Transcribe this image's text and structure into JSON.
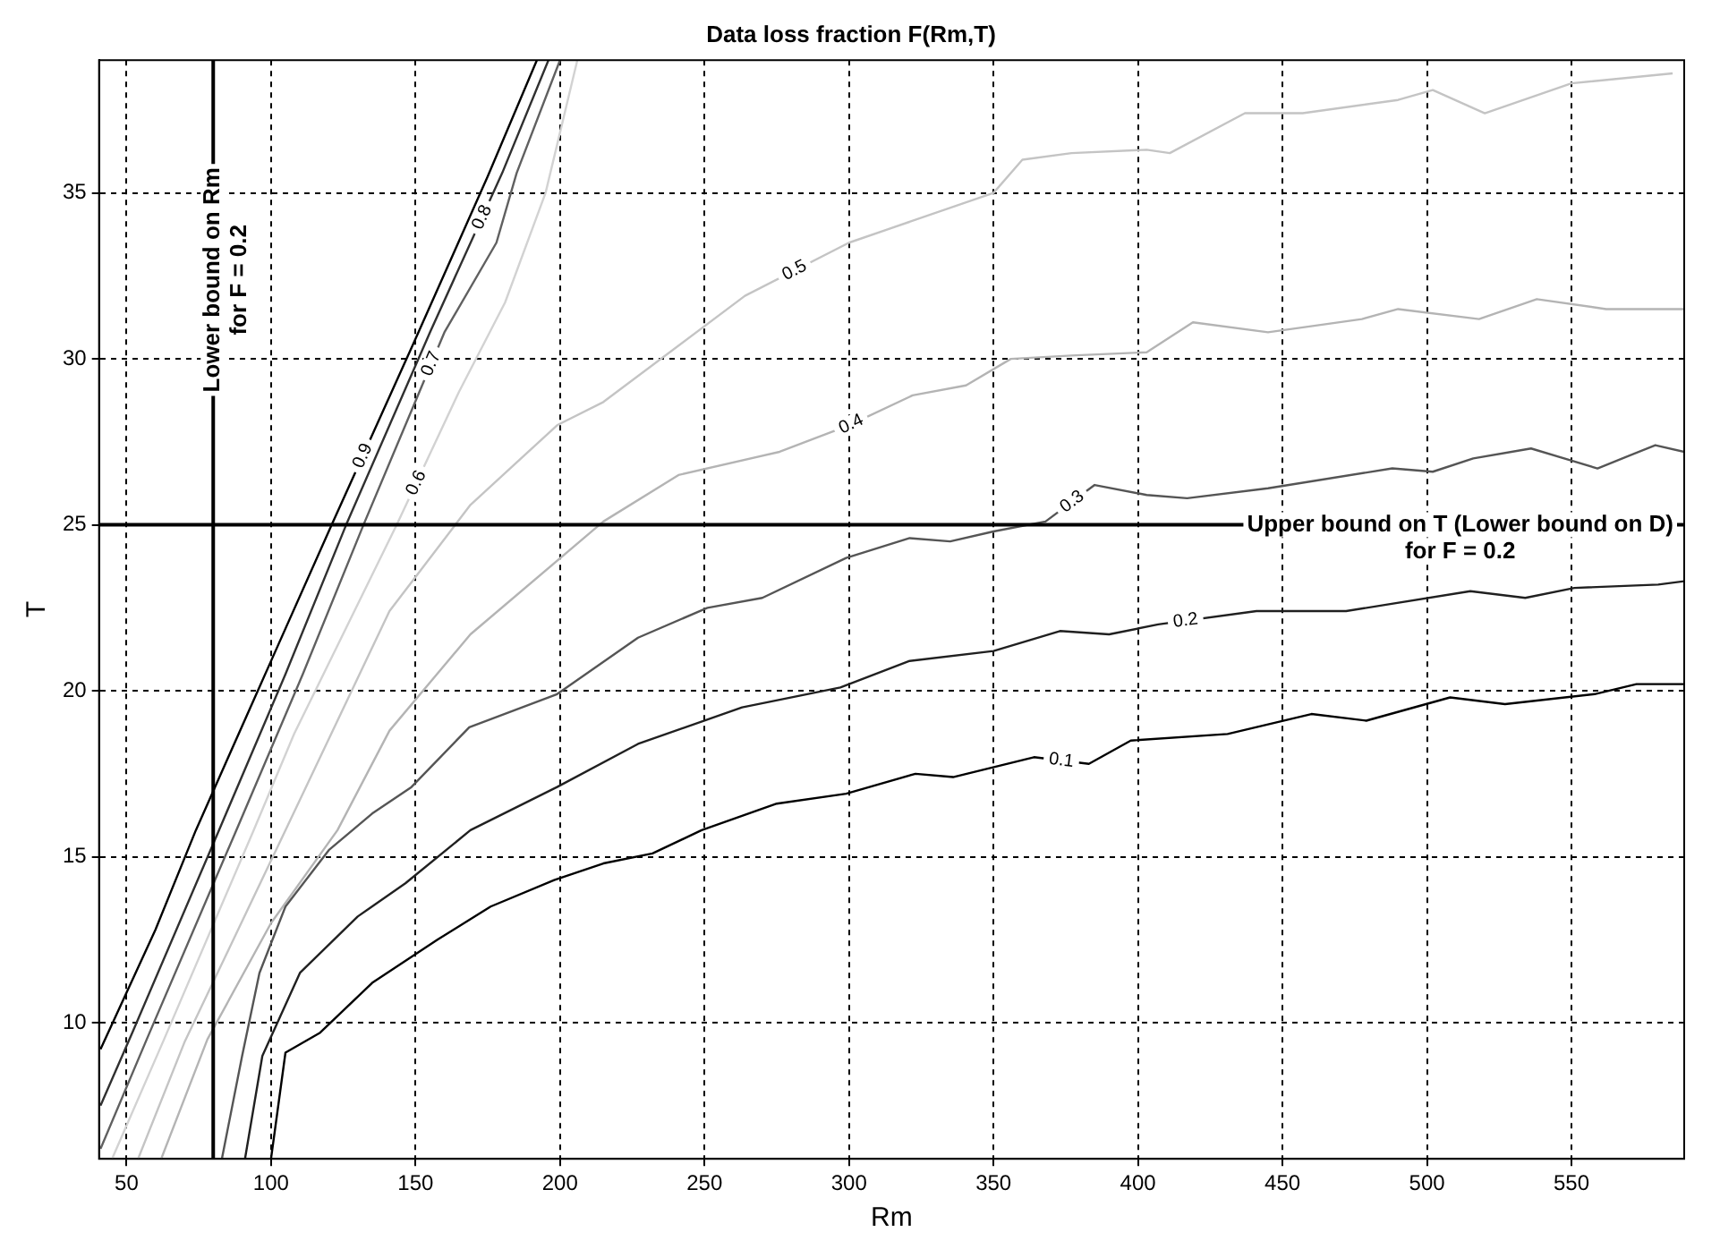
{
  "chart_data": {
    "type": "line",
    "title": "Data loss fraction F(Rm,T)",
    "xlabel": "Rm",
    "ylabel": "T",
    "xlim": [
      40.5,
      589
    ],
    "ylim": [
      5.9,
      39
    ],
    "xticks": [
      50,
      100,
      150,
      200,
      250,
      300,
      350,
      400,
      450,
      500,
      550
    ],
    "yticks": [
      10,
      15,
      20,
      25,
      30,
      35
    ],
    "grid": true,
    "legend": false,
    "marker": "none",
    "line_style": "solid",
    "ref_lines": [
      {
        "axis": "x",
        "value": 80
      },
      {
        "axis": "y",
        "value": 25
      }
    ],
    "annotations": [
      "Lower bound on Rm\nfor F = 0.2",
      "Upper bound on T (Lower bound on D)\nfor F = 0.2"
    ],
    "series": [
      {
        "name": "0.1",
        "color": "#000000",
        "x": [
          100,
          105,
          117,
          135,
          157.6,
          176,
          198,
          215,
          232,
          249,
          275,
          299,
          323,
          336,
          364,
          383,
          397.5,
          431,
          460,
          479,
          508,
          527,
          558,
          572.5,
          589
        ],
        "values": [
          5.9,
          9.1,
          9.7,
          11.2,
          12.5,
          13.5,
          14.3,
          14.8,
          15.1,
          15.8,
          16.6,
          16.9,
          17.5,
          17.4,
          18.0,
          17.8,
          18.5,
          18.7,
          19.3,
          19.1,
          19.8,
          19.6,
          19.9,
          20.2,
          20.2
        ]
      },
      {
        "name": "0.2",
        "color": "#202020",
        "x": [
          91,
          97,
          110,
          130,
          146.5,
          169,
          199,
          227,
          263,
          297,
          321,
          350,
          373,
          390,
          407,
          441,
          472,
          515,
          534,
          551,
          580,
          589
        ],
        "values": [
          5.9,
          9,
          11.5,
          13.2,
          14.2,
          15.8,
          17.1,
          18.4,
          19.5,
          20.1,
          20.9,
          21.2,
          21.8,
          21.7,
          22.0,
          22.4,
          22.4,
          23.0,
          22.8,
          23.1,
          23.2,
          23.3
        ]
      },
      {
        "name": "0.3",
        "color": "#555555",
        "x": [
          83,
          90,
          96,
          105,
          120,
          135,
          148.6,
          168.6,
          199,
          227,
          251,
          270,
          299,
          321,
          335,
          350,
          368,
          385,
          403,
          417,
          445,
          488,
          502,
          516,
          536,
          559,
          579,
          589
        ],
        "values": [
          5.9,
          9,
          11.5,
          13.5,
          15.2,
          16.3,
          17.1,
          18.9,
          19.9,
          21.6,
          22.5,
          22.8,
          24.0,
          24.6,
          24.5,
          24.8,
          25.1,
          26.2,
          25.9,
          25.8,
          26.1,
          26.7,
          26.6,
          27.0,
          27.3,
          26.7,
          27.4,
          27.2
        ]
      },
      {
        "name": "0.4",
        "color": "#b4b4b4",
        "x": [
          62,
          78,
          100,
          123,
          141,
          169,
          215,
          241,
          276,
          300,
          322,
          340.5,
          356,
          377,
          403,
          419,
          445,
          477.5,
          490,
          518,
          538,
          562,
          589
        ],
        "values": [
          5.9,
          9.5,
          13,
          15.8,
          18.8,
          21.7,
          25.1,
          26.5,
          27.2,
          28,
          28.9,
          29.2,
          30,
          30.1,
          30.2,
          31.1,
          30.8,
          31.2,
          31.5,
          31.2,
          31.8,
          31.5,
          31.5
        ]
      },
      {
        "name": "0.5",
        "color": "#c4c4c4",
        "x": [
          54,
          70,
          105,
          141,
          169,
          199,
          215,
          264,
          300,
          350,
          360,
          377,
          403,
          411,
          437,
          457,
          490,
          502,
          520,
          550,
          585
        ],
        "values": [
          5.9,
          9.4,
          15.8,
          22.4,
          25.6,
          28.0,
          28.7,
          31.9,
          33.5,
          35,
          36,
          36.2,
          36.3,
          36.2,
          37.4,
          37.4,
          37.8,
          38.1,
          37.4,
          38.3,
          38.6
        ]
      },
      {
        "name": "0.6",
        "color": "#d2d2d2",
        "x": [
          45,
          63,
          94,
          108,
          143.5,
          165,
          181,
          195,
          206
        ],
        "values": [
          5.9,
          9.5,
          15.8,
          18.7,
          25,
          29,
          31.7,
          35,
          39
        ]
      },
      {
        "name": "0.7",
        "color": "#606060",
        "x": [
          41,
          57,
          88,
          111,
          132,
          160,
          178,
          185,
          200
        ],
        "values": [
          6.2,
          9.5,
          15.8,
          20.5,
          25,
          30.8,
          33.5,
          35.6,
          39
        ]
      },
      {
        "name": "0.8",
        "color": "#303030",
        "x": [
          41,
          52,
          82,
          105,
          126,
          155,
          180,
          196
        ],
        "values": [
          7.5,
          9.7,
          15.8,
          20.5,
          25,
          30.8,
          35.6,
          39
        ]
      },
      {
        "name": "0.9",
        "color": "#000000",
        "x": [
          41,
          60,
          74,
          99,
          121,
          150,
          175,
          192
        ],
        "values": [
          9.2,
          12.8,
          15.8,
          20.7,
          25,
          30.6,
          35.5,
          39
        ]
      }
    ]
  }
}
